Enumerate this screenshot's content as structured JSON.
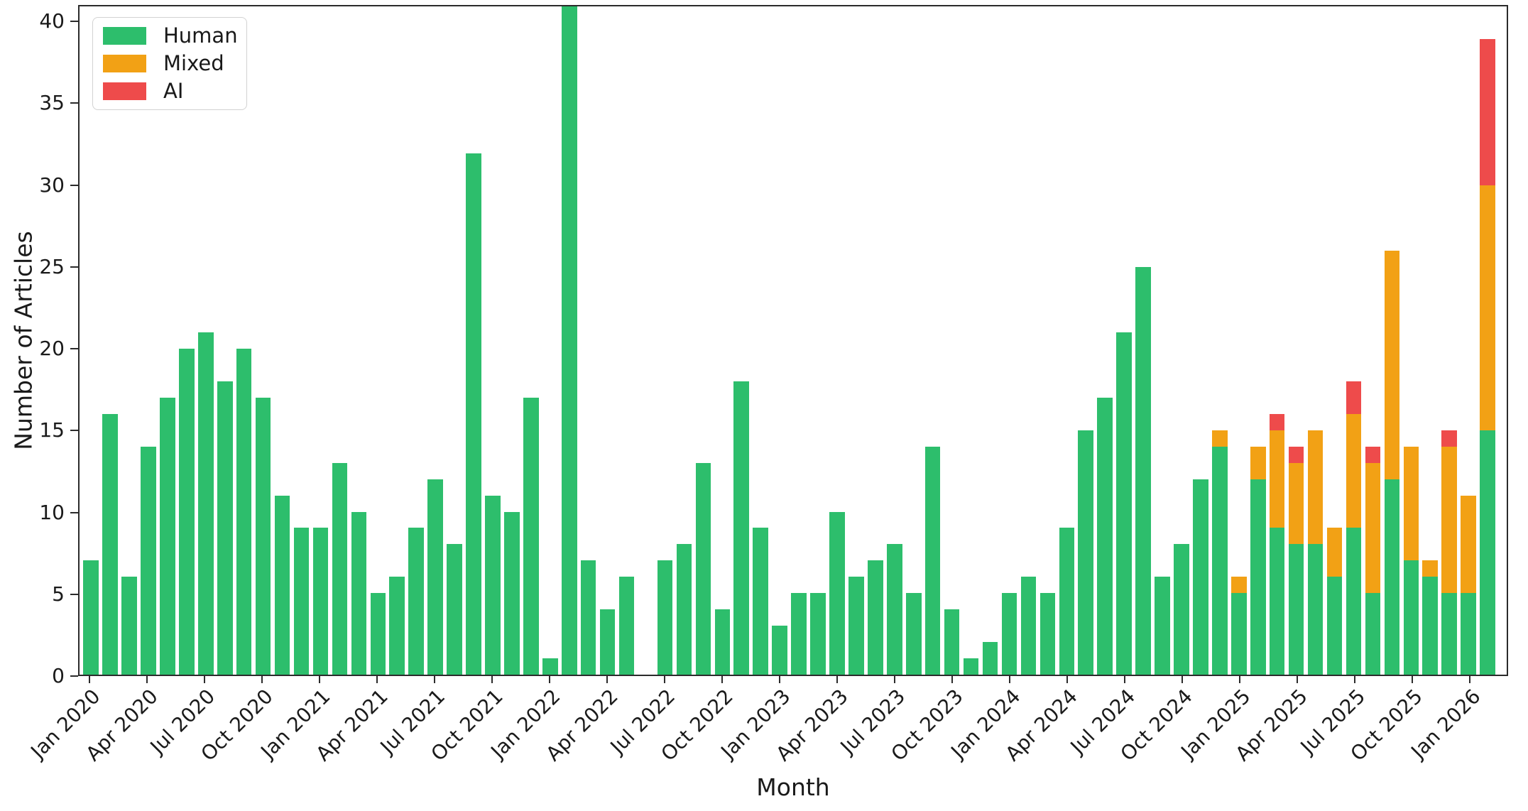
{
  "figure": {
    "xlabel": "Month",
    "ylabel": "Number of Articles"
  },
  "legend": {
    "position": "upper left",
    "items": [
      {
        "label": "Human",
        "color": "#2DBE6C"
      },
      {
        "label": "Mixed",
        "color": "#F2A115"
      },
      {
        "label": "AI",
        "color": "#EE4B4B"
      }
    ]
  },
  "chart_data": {
    "type": "bar",
    "stacked": true,
    "grid": false,
    "title": "",
    "xlabel": "Month",
    "ylabel": "Number of Articles",
    "ylim": [
      0,
      41
    ],
    "yticks": [
      0,
      5,
      10,
      15,
      20,
      25,
      30,
      35,
      40
    ],
    "x": [
      "Jan 2020",
      "Feb 2020",
      "Mar 2020",
      "Apr 2020",
      "May 2020",
      "Jun 2020",
      "Jul 2020",
      "Aug 2020",
      "Sep 2020",
      "Oct 2020",
      "Nov 2020",
      "Dec 2020",
      "Jan 2021",
      "Feb 2021",
      "Mar 2021",
      "Apr 2021",
      "May 2021",
      "Jun 2021",
      "Jul 2021",
      "Aug 2021",
      "Sep 2021",
      "Oct 2021",
      "Nov 2021",
      "Dec 2021",
      "Jan 2022",
      "Feb 2022",
      "Mar 2022",
      "Apr 2022",
      "May 2022",
      "Jun 2022",
      "Jul 2022",
      "Aug 2022",
      "Sep 2022",
      "Oct 2022",
      "Nov 2022",
      "Dec 2022",
      "Jan 2023",
      "Feb 2023",
      "Mar 2023",
      "Apr 2023",
      "May 2023",
      "Jun 2023",
      "Jul 2023",
      "Aug 2023",
      "Sep 2023",
      "Oct 2023",
      "Nov 2023",
      "Dec 2023",
      "Jan 2024",
      "Feb 2024",
      "Mar 2024",
      "Apr 2024",
      "May 2024",
      "Jun 2024",
      "Jul 2024",
      "Aug 2024",
      "Sep 2024",
      "Oct 2024",
      "Nov 2024",
      "Dec 2024",
      "Jan 2025",
      "Feb 2025",
      "Mar 2025",
      "Apr 2025",
      "May 2025",
      "Jun 2025",
      "Jul 2025",
      "Aug 2025",
      "Sep 2025",
      "Oct 2025",
      "Nov 2025",
      "Dec 2025",
      "Jan 2026",
      "Feb 2026"
    ],
    "xtick_every": 3,
    "xtick_labels": [
      "Jan 2020",
      "Apr 2020",
      "Jul 2020",
      "Oct 2020",
      "Jan 2021",
      "Apr 2021",
      "Jul 2021",
      "Oct 2021",
      "Jan 2022",
      "Apr 2022",
      "Jul 2022",
      "Oct 2022",
      "Jan 2023",
      "Apr 2023",
      "Jul 2023",
      "Oct 2023",
      "Jan 2024",
      "Apr 2024",
      "Jul 2024",
      "Oct 2024",
      "Jan 2025",
      "Apr 2025",
      "Jul 2025",
      "Oct 2025",
      "Jan 2026"
    ],
    "series": [
      {
        "name": "Human",
        "color": "#2DBE6C",
        "values": [
          7,
          16,
          6,
          14,
          17,
          20,
          21,
          18,
          20,
          17,
          11,
          9,
          9,
          13,
          10,
          5,
          6,
          9,
          12,
          8,
          32,
          11,
          10,
          17,
          1,
          41,
          7,
          4,
          6,
          0,
          7,
          8,
          13,
          4,
          18,
          9,
          3,
          5,
          5,
          10,
          6,
          7,
          8,
          5,
          14,
          4,
          1,
          2,
          5,
          6,
          5,
          9,
          15,
          17,
          21,
          25,
          6,
          8,
          12,
          14,
          5,
          12,
          9,
          8,
          8,
          6,
          9,
          5,
          12,
          7,
          6,
          5,
          5,
          15
        ]
      },
      {
        "name": "Mixed",
        "color": "#F2A115",
        "values": [
          0,
          0,
          0,
          0,
          0,
          0,
          0,
          0,
          0,
          0,
          0,
          0,
          0,
          0,
          0,
          0,
          0,
          0,
          0,
          0,
          0,
          0,
          0,
          0,
          0,
          0,
          0,
          0,
          0,
          0,
          0,
          0,
          0,
          0,
          0,
          0,
          0,
          0,
          0,
          0,
          0,
          0,
          0,
          0,
          0,
          0,
          0,
          0,
          0,
          0,
          0,
          0,
          0,
          0,
          0,
          0,
          0,
          0,
          0,
          1,
          1,
          2,
          6,
          5,
          7,
          3,
          7,
          8,
          14,
          7,
          1,
          9,
          6,
          15
        ]
      },
      {
        "name": "AI",
        "color": "#EE4B4B",
        "values": [
          0,
          0,
          0,
          0,
          0,
          0,
          0,
          0,
          0,
          0,
          0,
          0,
          0,
          0,
          0,
          0,
          0,
          0,
          0,
          0,
          0,
          0,
          0,
          0,
          0,
          0,
          0,
          0,
          0,
          0,
          0,
          0,
          0,
          0,
          0,
          0,
          0,
          0,
          0,
          0,
          0,
          0,
          0,
          0,
          0,
          0,
          0,
          0,
          0,
          0,
          0,
          0,
          0,
          0,
          0,
          0,
          0,
          0,
          0,
          0,
          0,
          0,
          1,
          1,
          0,
          0,
          2,
          1,
          0,
          0,
          0,
          1,
          0,
          9
        ]
      }
    ]
  }
}
